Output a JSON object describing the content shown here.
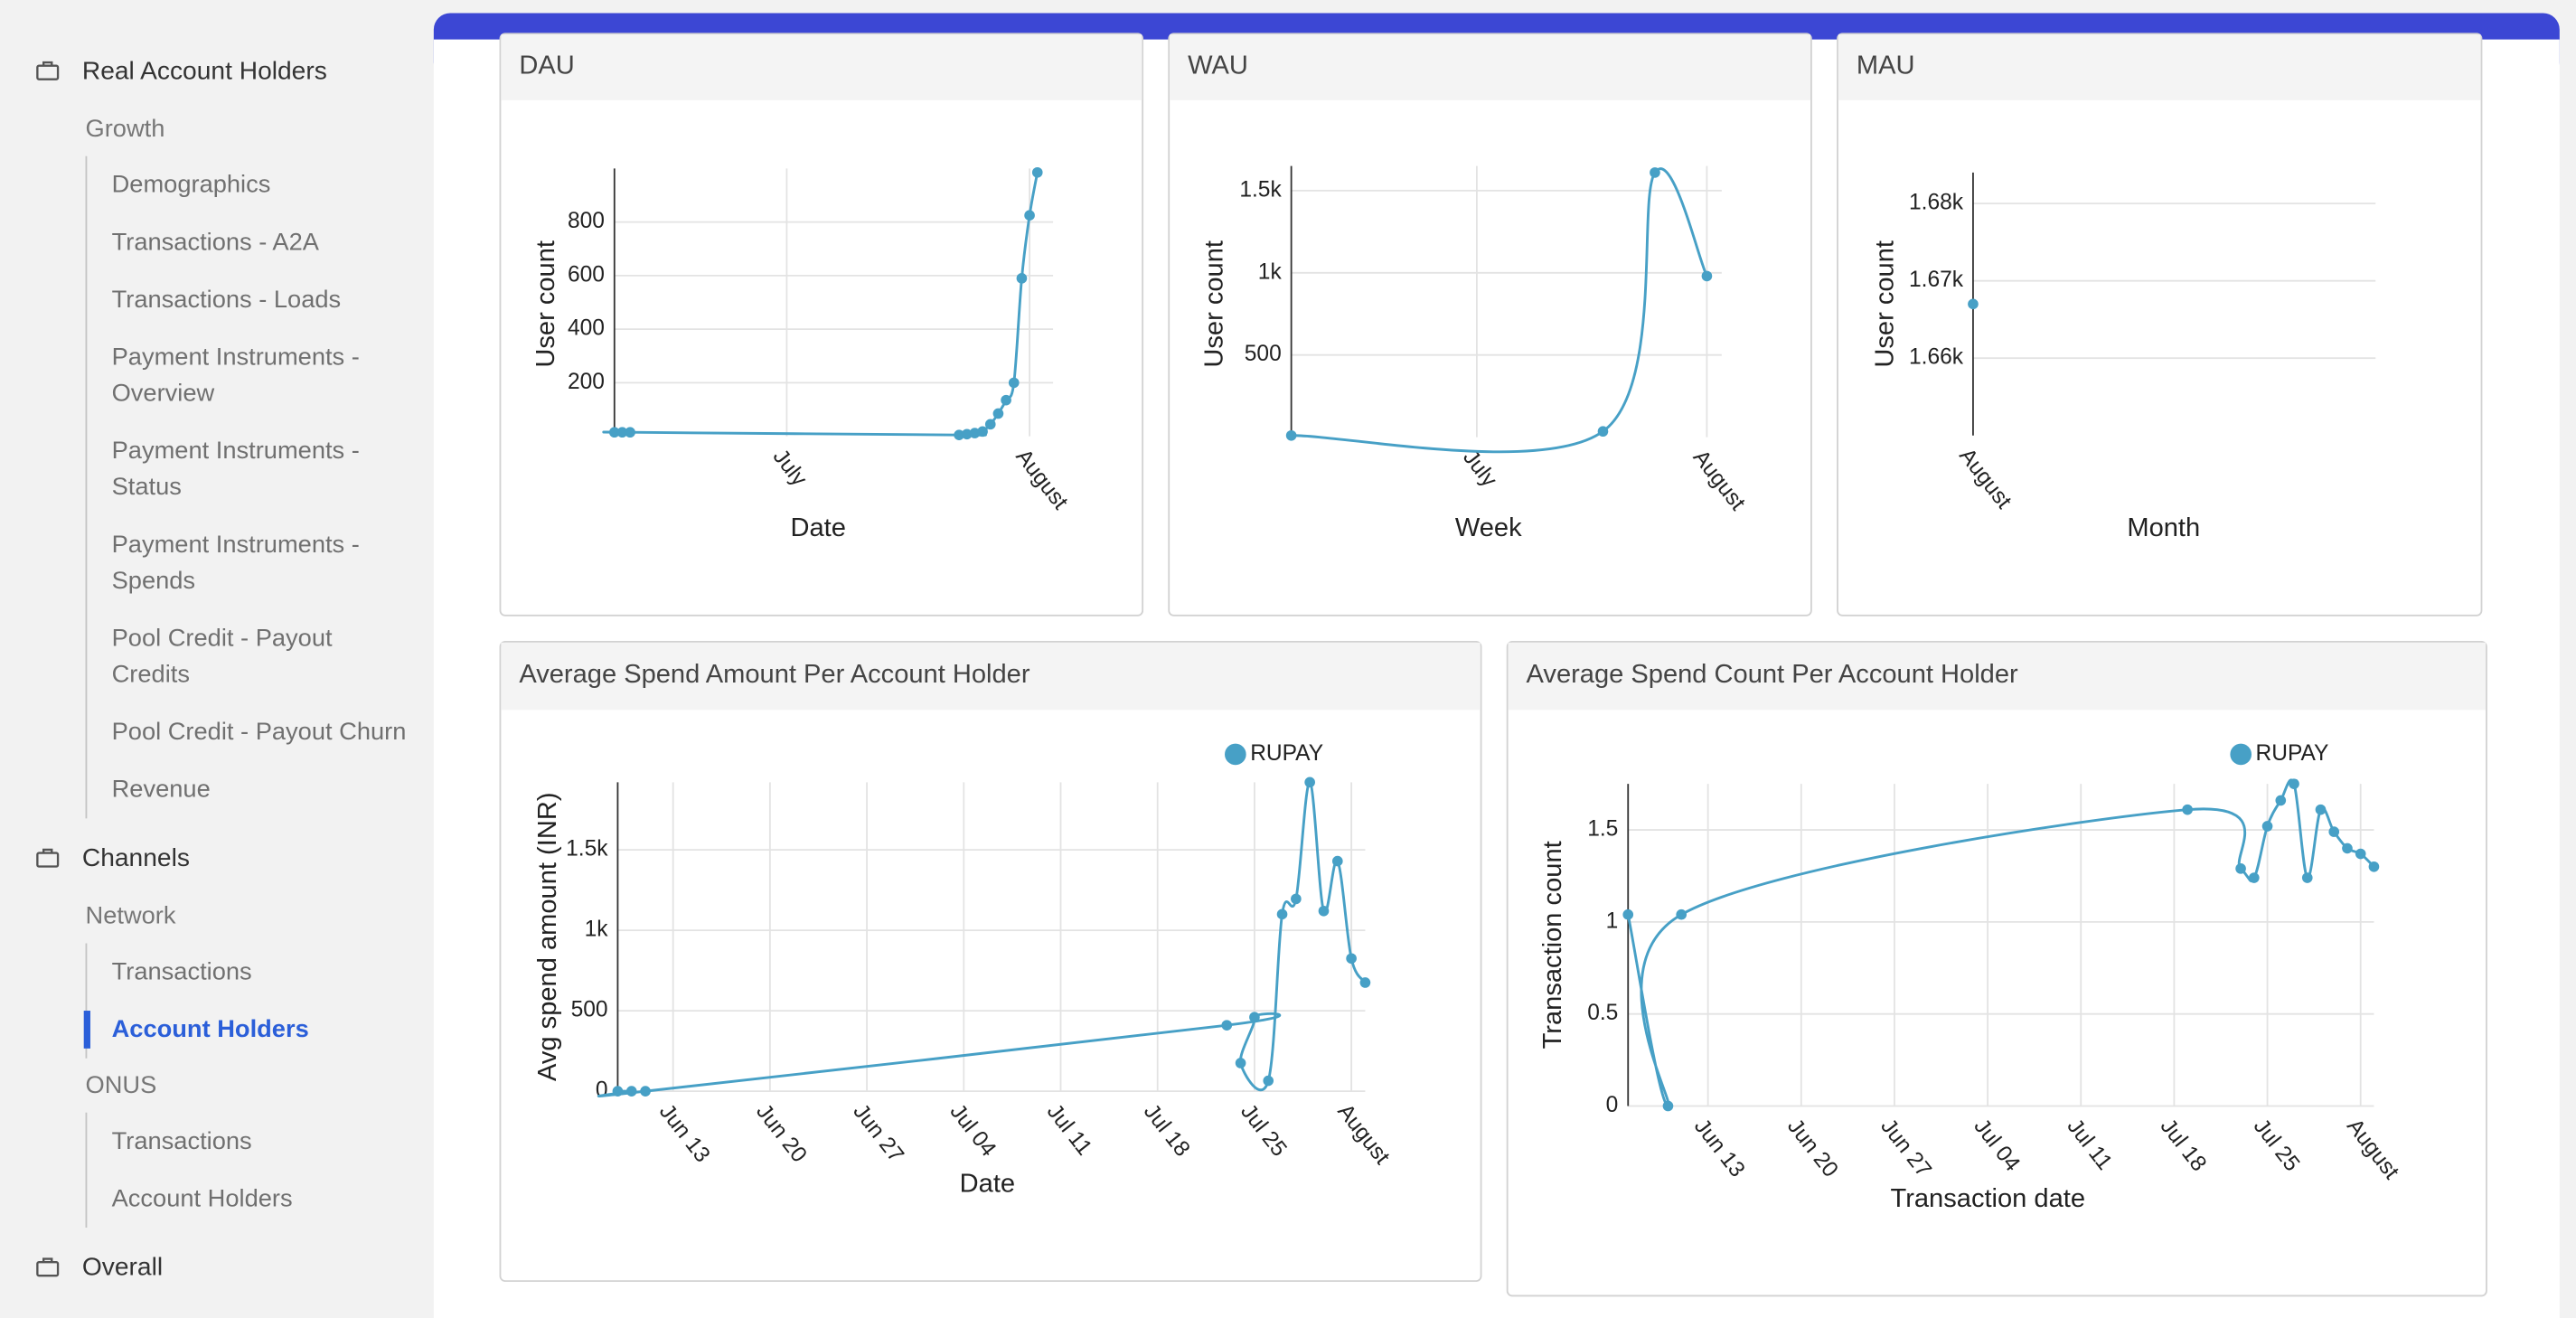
{
  "sidebar": {
    "sections": [
      {
        "title": "Real Account Holders",
        "groups": [
          {
            "title": "Growth",
            "items": [
              "Demographics",
              "Transactions - A2A",
              "Transactions - Loads",
              "Payment Instruments - Overview",
              "Payment Instruments - Status",
              "Payment Instruments - Spends",
              "Pool Credit - Payout Credits",
              "Pool Credit - Payout Churn",
              "Revenue"
            ]
          }
        ]
      },
      {
        "title": "Channels",
        "groups": [
          {
            "title": "Network",
            "items": [
              "Transactions",
              "Account Holders"
            ],
            "active": 1
          },
          {
            "title": "ONUS",
            "items": [
              "Transactions",
              "Account Holders"
            ]
          }
        ]
      },
      {
        "title": "Overall"
      }
    ]
  },
  "chart_data": [
    {
      "type": "line",
      "title": "DAU",
      "x_label": "Date",
      "y_label": "User count",
      "grid": true,
      "x": [
        "Jun 09",
        "Jun 10",
        "Jun 11",
        "Jul 23",
        "Jul 24",
        "Jul 25",
        "Jul 26",
        "Jul 27",
        "Jul 28",
        "Jul 29",
        "Jul 30",
        "Jul 31",
        "Aug 01",
        "Aug 02"
      ],
      "series": [
        {
          "color": "#47a0c6",
          "values": [
            15,
            15,
            15,
            5,
            8,
            12,
            18,
            45,
            85,
            135,
            200,
            590,
            825,
            985
          ]
        }
      ],
      "xlim": [
        "Jun 09",
        "Aug 04"
      ],
      "xticks": [
        {
          "value": "Jul 01",
          "label": "July"
        },
        {
          "value": "Aug 01",
          "label": "August"
        }
      ],
      "ylim": [
        0,
        1000
      ],
      "yticks": [
        200,
        400,
        600,
        800
      ]
    },
    {
      "type": "line",
      "title": "WAU",
      "x_label": "Week",
      "y_label": "User count",
      "grid": true,
      "x": [
        "Jun 06",
        "Jul 18",
        "Jul 25",
        "Aug 01"
      ],
      "series": [
        {
          "color": "#47a0c6",
          "values": [
            10,
            35,
            1610,
            980
          ]
        }
      ],
      "xlim": [
        "Jun 06",
        "Aug 03"
      ],
      "xticks": [
        {
          "value": "Jul 01",
          "label": "July"
        },
        {
          "value": "Aug 01",
          "label": "August"
        }
      ],
      "ylim": [
        0,
        1650
      ],
      "yticks": [
        500,
        {
          "value": 1000,
          "label": "1k"
        },
        {
          "value": 1500,
          "label": "1.5k"
        }
      ]
    },
    {
      "type": "line",
      "title": "MAU",
      "x_label": "Month",
      "y_label": "User count",
      "grid": true,
      "categories": [
        "August"
      ],
      "series": [
        {
          "color": "#47a0c6",
          "values": [
            1667
          ]
        }
      ],
      "ylim": [
        1650,
        1684
      ],
      "yticks": [
        {
          "value": 1660,
          "label": "1.66k"
        },
        {
          "value": 1670,
          "label": "1.67k"
        },
        {
          "value": 1680,
          "label": "1.68k"
        }
      ]
    },
    {
      "type": "line",
      "title": "Average Spend Amount Per Account Holder",
      "x_label": "Date",
      "y_label": "Avg spend amount (INR)",
      "grid": true,
      "legend": "top-right",
      "x": [
        "Jun 09",
        "Jun 10",
        "Jun 11",
        "Jul 23",
        "Jul 25",
        "Jul 24",
        "Jul 26",
        "Jul 27",
        "Jul 28",
        "Jul 29",
        "Jul 30",
        "Jul 31",
        "Aug 01",
        "Aug 02"
      ],
      "series": [
        {
          "name": "RUPAY",
          "color": "#47a0c6",
          "values": [
            0,
            0,
            0,
            410,
            460,
            175,
            65,
            1100,
            1195,
            1920,
            1120,
            1430,
            825,
            675
          ]
        }
      ],
      "xlim": [
        "Jun 09",
        "Aug 02"
      ],
      "xticks": [
        "Jun 13",
        "Jun 20",
        "Jun 27",
        "Jul 04",
        "Jul 11",
        "Jul 18",
        "Jul 25",
        {
          "value": "Aug 01",
          "label": "August"
        }
      ],
      "ylim": [
        0,
        1920
      ],
      "yticks": [
        0,
        500,
        {
          "value": 1000,
          "label": "1k"
        },
        {
          "value": 1500,
          "label": "1.5k"
        }
      ]
    },
    {
      "type": "line",
      "title": "Average Spend Count Per Account Holder",
      "x_label": "Transaction date",
      "y_label": "Transaction count",
      "grid": true,
      "legend": "top-right",
      "x": [
        "Jun 07",
        "Jun 10",
        "Jun 11",
        "Jul 19",
        "Jul 23",
        "Jul 24",
        "Jul 25",
        "Jul 26",
        "Jul 27",
        "Jul 28",
        "Jul 29",
        "Jul 30",
        "Jul 31",
        "Aug 01",
        "Aug 02"
      ],
      "series": [
        {
          "name": "RUPAY",
          "color": "#47a0c6",
          "values": [
            1.04,
            0,
            1.04,
            1.61,
            1.29,
            1.24,
            1.52,
            1.66,
            1.75,
            1.24,
            1.61,
            1.49,
            1.4,
            1.37,
            1.3
          ]
        }
      ],
      "xlim": [
        "Jun 07",
        "Aug 02"
      ],
      "xticks": [
        "Jun 13",
        "Jun 20",
        "Jun 27",
        "Jul 04",
        "Jul 11",
        "Jul 18",
        "Jul 25",
        {
          "value": "Aug 01",
          "label": "August"
        }
      ],
      "ylim": [
        0,
        1.75
      ],
      "yticks": [
        0,
        0.5,
        1,
        1.5
      ]
    }
  ]
}
